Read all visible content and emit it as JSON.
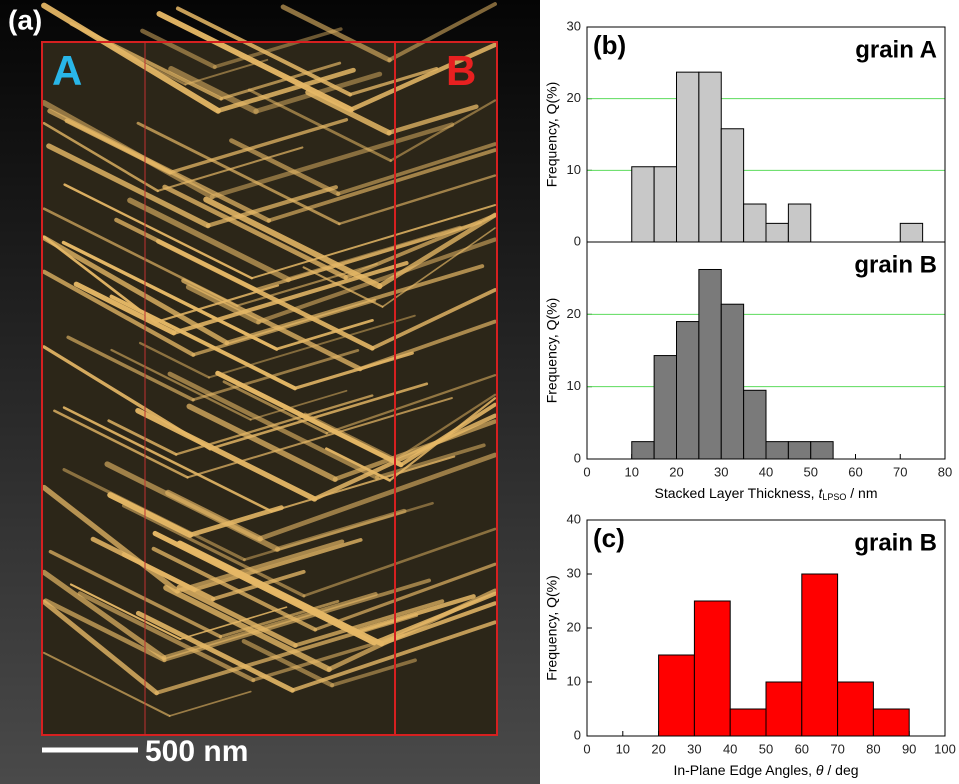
{
  "image_panel": {
    "label": "(a)",
    "region_a": "A",
    "region_b": "B",
    "scale_bar": "500 nm"
  },
  "chart_data": [
    {
      "type": "histogram",
      "panel_label": "(b)",
      "annotation": "grain A",
      "ylabel": "Frequency, Q(%)",
      "bins": [
        10,
        15,
        20,
        25,
        30,
        35,
        40,
        45,
        50,
        55,
        60,
        65,
        70,
        75
      ],
      "values": [
        10.5,
        10.5,
        23.7,
        23.7,
        15.8,
        5.3,
        2.6,
        5.3,
        0,
        0,
        0,
        0,
        2.6
      ],
      "color": "#c8c8c8",
      "xlim": [
        0,
        80
      ],
      "ylim": [
        0,
        30
      ],
      "yticks": [
        0,
        10,
        20,
        30
      ],
      "grid": true
    },
    {
      "type": "histogram",
      "annotation": "grain B",
      "ylabel": "Frequency, Q(%)",
      "xlabel": {
        "text": "Stacked Layer Thickness, ",
        "symbol": "t",
        "subscript": "LPSO",
        "unit": " / nm"
      },
      "bins": [
        10,
        15,
        20,
        25,
        30,
        35,
        40,
        45,
        50,
        55
      ],
      "values": [
        2.4,
        14.3,
        19.0,
        26.2,
        21.4,
        9.5,
        2.4,
        2.4,
        2.4
      ],
      "color": "#7a7a7a",
      "xlim": [
        0,
        80
      ],
      "ylim": [
        0,
        30
      ],
      "xticks": [
        0,
        10,
        20,
        30,
        40,
        50,
        60,
        70,
        80
      ],
      "yticks": [
        0,
        10,
        20
      ],
      "grid": true
    },
    {
      "type": "histogram",
      "panel_label": "(c)",
      "annotation": "grain B",
      "ylabel": "Frequency, Q(%)",
      "xlabel": {
        "text": "In-Plane Edge Angles, ",
        "symbol": "θ",
        "unit": " / deg"
      },
      "bins": [
        20,
        30,
        40,
        50,
        60,
        70,
        80,
        90
      ],
      "values": [
        15,
        25,
        5,
        10,
        30,
        10,
        5
      ],
      "color": "#ff0000",
      "xlim": [
        0,
        100
      ],
      "ylim": [
        0,
        40
      ],
      "xticks": [
        0,
        10,
        20,
        30,
        40,
        50,
        60,
        70,
        80,
        90,
        100
      ],
      "yticks": [
        0,
        10,
        20,
        30,
        40
      ],
      "grid": false
    }
  ]
}
